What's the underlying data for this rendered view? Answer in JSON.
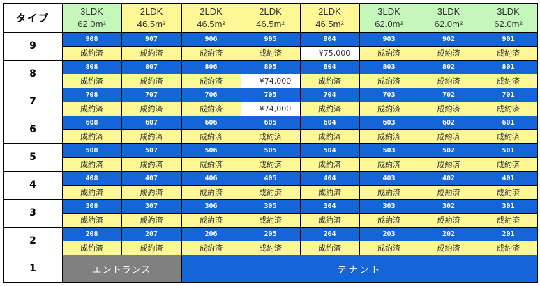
{
  "header": {
    "type_label": "タイプ",
    "columns": [
      {
        "type": "3LDK",
        "area": "62.0m²",
        "color": "#c5f7bd"
      },
      {
        "type": "2LDK",
        "area": "46.5m²",
        "color": "#fdf796"
      },
      {
        "type": "2LDK",
        "area": "46.5m²",
        "color": "#fdf796"
      },
      {
        "type": "2LDK",
        "area": "46.5m²",
        "color": "#fdf796"
      },
      {
        "type": "2LDK",
        "area": "46.5m²",
        "color": "#fdf796"
      },
      {
        "type": "3LDK",
        "area": "62.0m²",
        "color": "#c5f7bd"
      },
      {
        "type": "3LDK",
        "area": "62.0m²",
        "color": "#c5f7bd"
      },
      {
        "type": "3LDK",
        "area": "62.0m²",
        "color": "#c5f7bd"
      }
    ]
  },
  "floors": [
    {
      "floor": "9",
      "rooms": [
        "908",
        "907",
        "906",
        "905",
        "904",
        "903",
        "902",
        "901"
      ],
      "status": [
        "成約済",
        "成約済",
        "成約済",
        "成約済",
        "¥75,000",
        "成約済",
        "成約済",
        "成約済"
      ]
    },
    {
      "floor": "8",
      "rooms": [
        "808",
        "807",
        "806",
        "805",
        "804",
        "803",
        "802",
        "801"
      ],
      "status": [
        "成約済",
        "成約済",
        "成約済",
        "¥74,000",
        "成約済",
        "成約済",
        "成約済",
        "成約済"
      ]
    },
    {
      "floor": "7",
      "rooms": [
        "708",
        "707",
        "706",
        "705",
        "704",
        "703",
        "702",
        "701"
      ],
      "status": [
        "成約済",
        "成約済",
        "成約済",
        "¥74,000",
        "成約済",
        "成約済",
        "成約済",
        "成約済"
      ]
    },
    {
      "floor": "6",
      "rooms": [
        "608",
        "607",
        "606",
        "605",
        "604",
        "603",
        "602",
        "601"
      ],
      "status": [
        "成約済",
        "成約済",
        "成約済",
        "成約済",
        "成約済",
        "成約済",
        "成約済",
        "成約済"
      ]
    },
    {
      "floor": "5",
      "rooms": [
        "508",
        "507",
        "506",
        "505",
        "504",
        "503",
        "502",
        "501"
      ],
      "status": [
        "成約済",
        "成約済",
        "成約済",
        "成約済",
        "成約済",
        "成約済",
        "成約済",
        "成約済"
      ]
    },
    {
      "floor": "4",
      "rooms": [
        "408",
        "407",
        "406",
        "405",
        "404",
        "403",
        "402",
        "401"
      ],
      "status": [
        "成約済",
        "成約済",
        "成約済",
        "成約済",
        "成約済",
        "成約済",
        "成約済",
        "成約済"
      ]
    },
    {
      "floor": "3",
      "rooms": [
        "308",
        "307",
        "306",
        "305",
        "304",
        "303",
        "302",
        "301"
      ],
      "status": [
        "成約済",
        "成約済",
        "成約済",
        "成約済",
        "成約済",
        "成約済",
        "成約済",
        "成約済"
      ]
    },
    {
      "floor": "2",
      "rooms": [
        "208",
        "207",
        "206",
        "205",
        "204",
        "203",
        "202",
        "201"
      ],
      "status": [
        "成約済",
        "成約済",
        "成約済",
        "成約済",
        "成約済",
        "成約済",
        "成約済",
        "成約済"
      ]
    }
  ],
  "ground": {
    "floor": "1",
    "entrance": "エントランス",
    "tenant": "テナント"
  }
}
